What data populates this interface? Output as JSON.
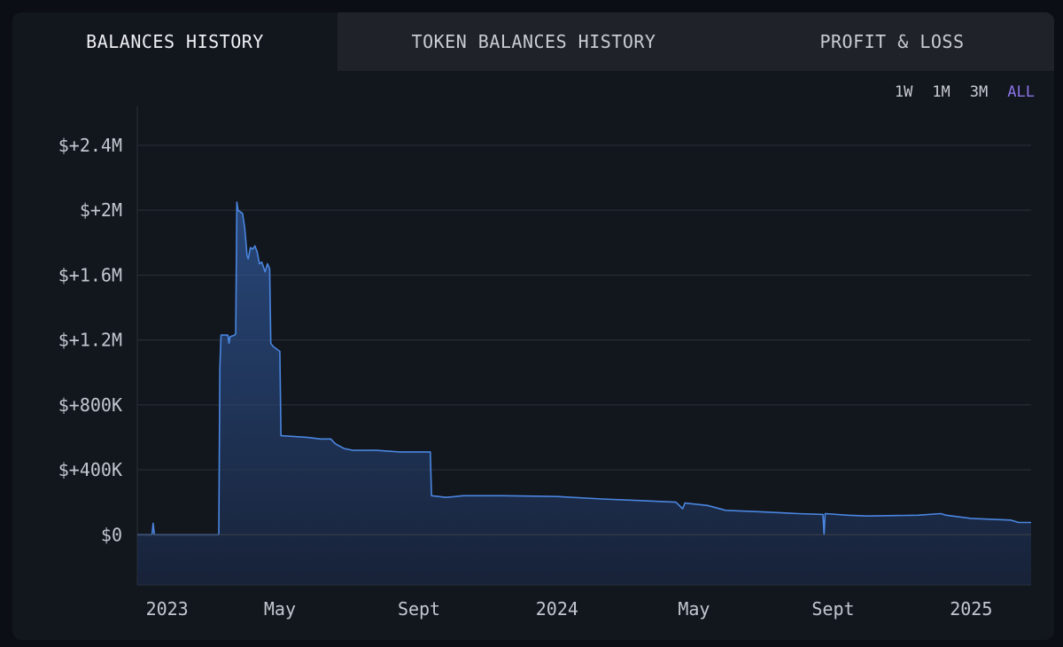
{
  "tabs": [
    "BALANCES HISTORY",
    "TOKEN BALANCES HISTORY",
    "PROFIT & LOSS"
  ],
  "range_buttons": [
    "1W",
    "1M",
    "3M",
    "ALL"
  ],
  "colors": {
    "accent": "#8b74e6",
    "line": "#4a86e0",
    "grid": "#2c3038"
  },
  "chart_data": {
    "type": "area",
    "title": "",
    "xlabel": "",
    "ylabel": "",
    "x_tick_labels": [
      "2023",
      "May",
      "Sept",
      "2024",
      "May",
      "Sept",
      "2025"
    ],
    "x_ticks": [
      "2023-01-01",
      "2023-05-01",
      "2023-09-01",
      "2024-01-01",
      "2024-05-01",
      "2024-09-01",
      "2025-01-01"
    ],
    "y_tick_labels": [
      "$0",
      "$+400K",
      "$+800K",
      "$+1.2M",
      "$+1.6M",
      "$+2M",
      "$+2.4M"
    ],
    "y_ticks": [
      0,
      400000,
      800000,
      1200000,
      1600000,
      2000000,
      2400000
    ],
    "ylim": [
      -310000,
      2640000
    ],
    "xlim": [
      "2022-12-26",
      "2025-02-23"
    ],
    "grid": true,
    "series": [
      {
        "values": [
          [
            "2022-12-26",
            0
          ],
          [
            "2023-01-08",
            0
          ],
          [
            "2023-01-09",
            70000
          ],
          [
            "2023-01-10",
            0
          ],
          [
            "2023-03-08",
            0
          ],
          [
            "2023-03-09",
            1030000
          ],
          [
            "2023-03-10",
            1230000
          ],
          [
            "2023-03-16",
            1230000
          ],
          [
            "2023-03-17",
            1180000
          ],
          [
            "2023-03-18",
            1220000
          ],
          [
            "2023-03-22",
            1230000
          ],
          [
            "2023-03-23",
            1240000
          ],
          [
            "2023-03-24",
            2050000
          ],
          [
            "2023-03-25",
            2000000
          ],
          [
            "2023-03-29",
            1980000
          ],
          [
            "2023-03-31",
            1890000
          ],
          [
            "2023-04-02",
            1720000
          ],
          [
            "2023-04-03",
            1700000
          ],
          [
            "2023-04-05",
            1770000
          ],
          [
            "2023-04-07",
            1760000
          ],
          [
            "2023-04-09",
            1780000
          ],
          [
            "2023-04-11",
            1740000
          ],
          [
            "2023-04-13",
            1670000
          ],
          [
            "2023-04-15",
            1680000
          ],
          [
            "2023-04-18",
            1620000
          ],
          [
            "2023-04-20",
            1670000
          ],
          [
            "2023-04-22",
            1640000
          ],
          [
            "2023-04-23",
            1180000
          ],
          [
            "2023-04-25",
            1160000
          ],
          [
            "2023-05-01",
            1130000
          ],
          [
            "2023-05-02",
            610000
          ],
          [
            "2023-05-25",
            600000
          ],
          [
            "2023-06-06",
            590000
          ],
          [
            "2023-06-15",
            590000
          ],
          [
            "2023-06-19",
            560000
          ],
          [
            "2023-06-27",
            530000
          ],
          [
            "2023-07-05",
            520000
          ],
          [
            "2023-07-25",
            520000
          ],
          [
            "2023-08-15",
            510000
          ],
          [
            "2023-09-11",
            510000
          ],
          [
            "2023-09-12",
            240000
          ],
          [
            "2023-09-25",
            230000
          ],
          [
            "2023-10-10",
            240000
          ],
          [
            "2023-11-15",
            240000
          ],
          [
            "2024-01-01",
            235000
          ],
          [
            "2024-02-10",
            220000
          ],
          [
            "2024-03-15",
            210000
          ],
          [
            "2024-04-15",
            200000
          ],
          [
            "2024-04-21",
            160000
          ],
          [
            "2024-04-23",
            195000
          ],
          [
            "2024-05-13",
            180000
          ],
          [
            "2024-05-29",
            150000
          ],
          [
            "2024-07-01",
            140000
          ],
          [
            "2024-08-01",
            130000
          ],
          [
            "2024-08-23",
            125000
          ],
          [
            "2024-08-24",
            0
          ],
          [
            "2024-08-25",
            130000
          ],
          [
            "2024-09-14",
            120000
          ],
          [
            "2024-10-01",
            115000
          ],
          [
            "2024-11-15",
            120000
          ],
          [
            "2024-12-05",
            130000
          ],
          [
            "2024-12-10",
            120000
          ],
          [
            "2025-01-01",
            100000
          ],
          [
            "2025-02-05",
            90000
          ],
          [
            "2025-02-12",
            75000
          ],
          [
            "2025-02-23",
            75000
          ]
        ]
      }
    ]
  }
}
